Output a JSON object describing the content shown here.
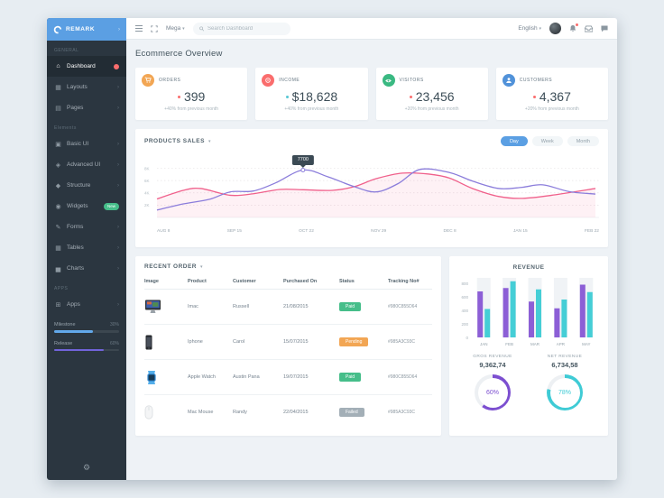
{
  "brand": {
    "name": "REMARK"
  },
  "sidebar": {
    "sections": [
      {
        "label": "GENERAL",
        "items": [
          {
            "label": "Dashboard",
            "active": true
          },
          {
            "label": "Layouts"
          },
          {
            "label": "Pages"
          }
        ]
      },
      {
        "label": "Elements",
        "items": [
          {
            "label": "Basic UI"
          },
          {
            "label": "Advanced UI"
          },
          {
            "label": "Structure"
          },
          {
            "label": "Widgets",
            "badge": "New"
          },
          {
            "label": "Forms"
          },
          {
            "label": "Tables"
          },
          {
            "label": "Charts"
          }
        ]
      },
      {
        "label": "APPS",
        "items": [
          {
            "label": "Apps"
          }
        ]
      }
    ],
    "progress": [
      {
        "label": "Milestone",
        "percent_label": "30%",
        "width": "60%",
        "color": "#62a8ea"
      },
      {
        "label": "Release",
        "percent_label": "60%",
        "width": "76%",
        "color": "#7163da"
      }
    ]
  },
  "topbar": {
    "nav_label": "Mega",
    "search_placeholder": "Search Dashboard",
    "language_label": "English"
  },
  "overview": {
    "title": "Ecommerce Overview",
    "cards": [
      {
        "label": "ORDERS",
        "value": "399",
        "note": "+40% from previous month",
        "icon_color": "#f2a654",
        "dot_color": "#fa6d6d"
      },
      {
        "label": "INCOME",
        "value": "$18,628",
        "note": "+40% from previous month",
        "icon_color": "#fa6d6d",
        "dot_color": "#57c7d4"
      },
      {
        "label": "VISITORS",
        "value": "23,456",
        "note": "+20% from previous month",
        "icon_color": "#3ab982",
        "dot_color": "#fa6d6d"
      },
      {
        "label": "CUSTOMERS",
        "value": "4,367",
        "note": "+20% from previous month",
        "icon_color": "#5192d9",
        "dot_color": "#fa6d6d"
      }
    ]
  },
  "products_sales": {
    "title": "PRODUCTS SALES",
    "buttons": [
      {
        "label": "Day",
        "active": true
      },
      {
        "label": "Week"
      },
      {
        "label": "Month"
      }
    ]
  },
  "recent_order": {
    "title": "RECENT ORDER",
    "columns": [
      "Image",
      "Product",
      "Customer",
      "Purchased On",
      "Status",
      "Tracking No#"
    ],
    "rows": [
      {
        "product": "Imac",
        "customer": "Russell",
        "purchased_on": "21/08/2015",
        "status": "Paid",
        "status_color": "#46be8a",
        "tracking": "#980C855D64"
      },
      {
        "product": "Iphone",
        "customer": "Carol",
        "purchased_on": "15/07/2015",
        "status": "Pending",
        "status_color": "#f2a654",
        "tracking": "#985A3C93C"
      },
      {
        "product": "Apple Watch",
        "customer": "Austin Pana",
        "purchased_on": "19/07/2015",
        "status": "Paid",
        "status_color": "#46be8a",
        "tracking": "#980C855D64"
      },
      {
        "product": "Mac Mouse",
        "customer": "Randy",
        "purchased_on": "22/04/2015",
        "status": "Failed",
        "status_color": "#a3afb7",
        "tracking": "#985A3C93C"
      }
    ]
  },
  "revenue": {
    "title": "REVENUE",
    "kpis": [
      {
        "label": "GROS REVENUE",
        "value": "9,362,74",
        "percent": "60%"
      },
      {
        "label": "NET REVENUE",
        "value": "6,734,58",
        "percent": "78%"
      }
    ]
  },
  "chart_data": [
    {
      "type": "line",
      "title": "PRODUCTS SALES",
      "x_ticks": [
        "AUG 8",
        "SEP 15",
        "OCT 22",
        "NOV 29",
        "DEC 8",
        "JAN 15",
        "FEB 22"
      ],
      "y_ticks": [
        {
          "value": 2000,
          "label": "2K"
        },
        {
          "value": 4000,
          "label": "4K"
        },
        {
          "value": 6000,
          "label": "6K"
        },
        {
          "value": 8000,
          "label": "8K"
        }
      ],
      "ylim": [
        0,
        8800
      ],
      "grid": "dashed-horizontal",
      "legend": "none",
      "tooltip": {
        "text": "7700",
        "series_index": 0,
        "t": 0.333,
        "value": 7700
      },
      "series": [
        {
          "name": "series-purple",
          "color": "#8b7ddb",
          "points": [
            [
              0,
              1200
            ],
            [
              0.06,
              2200
            ],
            [
              0.12,
              2950
            ],
            [
              0.167,
              4150
            ],
            [
              0.22,
              4300
            ],
            [
              0.27,
              5600
            ],
            [
              0.333,
              7700
            ],
            [
              0.39,
              6600
            ],
            [
              0.45,
              5000
            ],
            [
              0.5,
              4150
            ],
            [
              0.55,
              5500
            ],
            [
              0.6,
              7800
            ],
            [
              0.667,
              7300
            ],
            [
              0.72,
              5900
            ],
            [
              0.78,
              4700
            ],
            [
              0.833,
              4900
            ],
            [
              0.88,
              5300
            ],
            [
              0.94,
              4200
            ],
            [
              1,
              3800
            ]
          ]
        },
        {
          "name": "series-pink",
          "color": "#f0608b",
          "fill": "rgba(240,96,139,0.09)",
          "points": [
            [
              0,
              3000
            ],
            [
              0.06,
              4400
            ],
            [
              0.1,
              4700
            ],
            [
              0.167,
              3600
            ],
            [
              0.22,
              3850
            ],
            [
              0.28,
              4550
            ],
            [
              0.333,
              4500
            ],
            [
              0.4,
              4400
            ],
            [
              0.45,
              5000
            ],
            [
              0.5,
              6300
            ],
            [
              0.56,
              7200
            ],
            [
              0.62,
              7050
            ],
            [
              0.667,
              6400
            ],
            [
              0.72,
              4700
            ],
            [
              0.78,
              3400
            ],
            [
              0.833,
              3100
            ],
            [
              0.9,
              3600
            ],
            [
              1,
              4700
            ]
          ]
        }
      ]
    },
    {
      "type": "bar",
      "title": "REVENUE",
      "categories": [
        "JAN",
        "FEB",
        "MAR",
        "APR",
        "MAY"
      ],
      "y_ticks": [
        0,
        200,
        400,
        600,
        800
      ],
      "ylim": [
        0,
        880
      ],
      "series": [
        {
          "name": "series-purple",
          "color": "#8c5fd6",
          "values": [
            680,
            730,
            530,
            430,
            780
          ]
        },
        {
          "name": "series-teal",
          "color": "#45ced6",
          "values": [
            420,
            830,
            710,
            560,
            670
          ]
        }
      ]
    },
    {
      "type": "donut",
      "label": "GROS REVENUE",
      "percent": 60,
      "color": "#7c4fd0"
    },
    {
      "type": "donut",
      "label": "NET REVENUE",
      "percent": 78,
      "color": "#3fcbd5"
    }
  ]
}
